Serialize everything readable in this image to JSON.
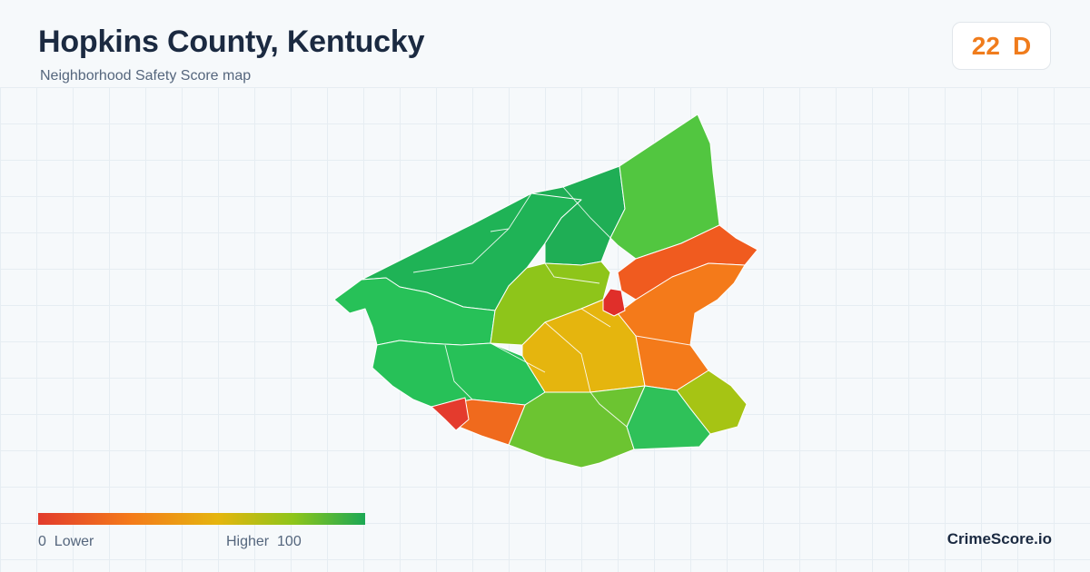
{
  "header": {
    "title": "Hopkins County, Kentucky",
    "subtitle": "Neighborhood Safety Score map"
  },
  "score": {
    "value": "22",
    "grade": "D",
    "color": "#f07c1c"
  },
  "legend": {
    "low_label": "0  Lower",
    "high_label": "Higher  100",
    "colors": [
      "#e23b2c",
      "#f47a1a",
      "#e5b50e",
      "#8ec51a",
      "#1ca854"
    ]
  },
  "brand": "CrimeScore.io",
  "map_regions": [
    {
      "name": "north-west-large",
      "color": "#1fb356"
    },
    {
      "name": "north-central",
      "color": "#1fae55"
    },
    {
      "name": "north-east",
      "color": "#52c640"
    },
    {
      "name": "west",
      "color": "#27c158"
    },
    {
      "name": "west-lower",
      "color": "#27c158"
    },
    {
      "name": "east-upper",
      "color": "#f05b1f"
    },
    {
      "name": "east-central",
      "color": "#f47a1a"
    },
    {
      "name": "south-east",
      "color": "#a6c414"
    },
    {
      "name": "south-central",
      "color": "#6cc431"
    },
    {
      "name": "south-east-lower",
      "color": "#2fc159"
    },
    {
      "name": "south-west",
      "color": "#f06a1d"
    },
    {
      "name": "south-west-city",
      "color": "#e43b2d"
    },
    {
      "name": "central-yellow",
      "color": "#e5b50e"
    },
    {
      "name": "central-lime",
      "color": "#8ec51a"
    },
    {
      "name": "madisonville-core",
      "color": "#e02f2a"
    }
  ]
}
